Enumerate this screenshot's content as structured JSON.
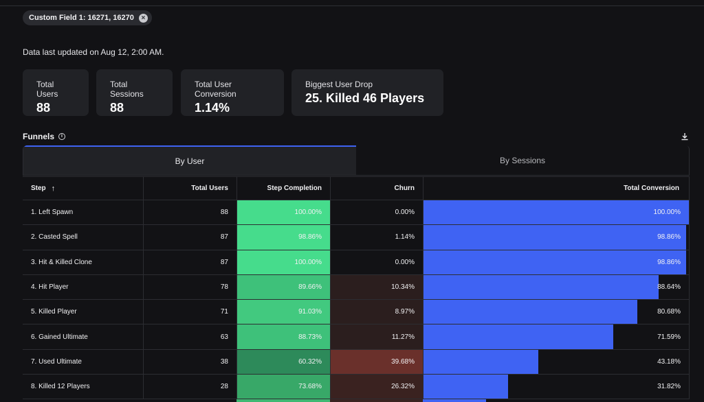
{
  "filter_chip": {
    "label": "Custom Field 1: 16271, 16270"
  },
  "updated_text": "Data last updated on Aug 12, 2:00 AM.",
  "stats": [
    {
      "label": "Total Users",
      "value": "88"
    },
    {
      "label": "Total Sessions",
      "value": "88"
    },
    {
      "label": "Total User Conversion",
      "value": "1.14%"
    },
    {
      "label": "Biggest User Drop",
      "value": "25. Killed 46 Players"
    }
  ],
  "funnels": {
    "title": "Funnels",
    "tabs": [
      {
        "label": "By User"
      },
      {
        "label": "By Sessions"
      }
    ],
    "columns": {
      "step": "Step",
      "total_users": "Total Users",
      "step_completion": "Step Completion",
      "churn": "Churn",
      "total_conversion": "Total Conversion"
    },
    "rows": [
      {
        "step": "1. Left Spawn",
        "users": "88",
        "completion": "100.00%",
        "churn": "0.00%",
        "conversion": "100.00%",
        "completion_pct": 100,
        "churn_pct": 0,
        "conversion_pct": 100
      },
      {
        "step": "2. Casted Spell",
        "users": "87",
        "completion": "98.86%",
        "churn": "1.14%",
        "conversion": "98.86%",
        "completion_pct": 98.86,
        "churn_pct": 1.14,
        "conversion_pct": 98.86
      },
      {
        "step": "3. Hit & Killed Clone",
        "users": "87",
        "completion": "100.00%",
        "churn": "0.00%",
        "conversion": "98.86%",
        "completion_pct": 100,
        "churn_pct": 0,
        "conversion_pct": 98.86
      },
      {
        "step": "4. Hit Player",
        "users": "78",
        "completion": "89.66%",
        "churn": "10.34%",
        "conversion": "88.64%",
        "completion_pct": 89.66,
        "churn_pct": 10.34,
        "conversion_pct": 88.64
      },
      {
        "step": "5. Killed Player",
        "users": "71",
        "completion": "91.03%",
        "churn": "8.97%",
        "conversion": "80.68%",
        "completion_pct": 91.03,
        "churn_pct": 8.97,
        "conversion_pct": 80.68
      },
      {
        "step": "6. Gained Ultimate",
        "users": "63",
        "completion": "88.73%",
        "churn": "11.27%",
        "conversion": "71.59%",
        "completion_pct": 88.73,
        "churn_pct": 11.27,
        "conversion_pct": 71.59
      },
      {
        "step": "7. Used Ultimate",
        "users": "38",
        "completion": "60.32%",
        "churn": "39.68%",
        "conversion": "43.18%",
        "completion_pct": 60.32,
        "churn_pct": 39.68,
        "conversion_pct": 43.18
      },
      {
        "step": "8. Killed 12 Players",
        "users": "28",
        "completion": "73.68%",
        "churn": "26.32%",
        "conversion": "31.82%",
        "completion_pct": 73.68,
        "churn_pct": 26.32,
        "conversion_pct": 31.82
      }
    ]
  },
  "colors": {
    "accent": "#3f63f3",
    "completion_base": "#46dc8c",
    "churn_base": "#a0352f",
    "card_bg": "#212226",
    "page_bg": "#121215"
  },
  "icons": {
    "chip_close": "close-icon",
    "info": "info-icon",
    "download": "download-icon",
    "sort": "arrow-up-icon"
  }
}
